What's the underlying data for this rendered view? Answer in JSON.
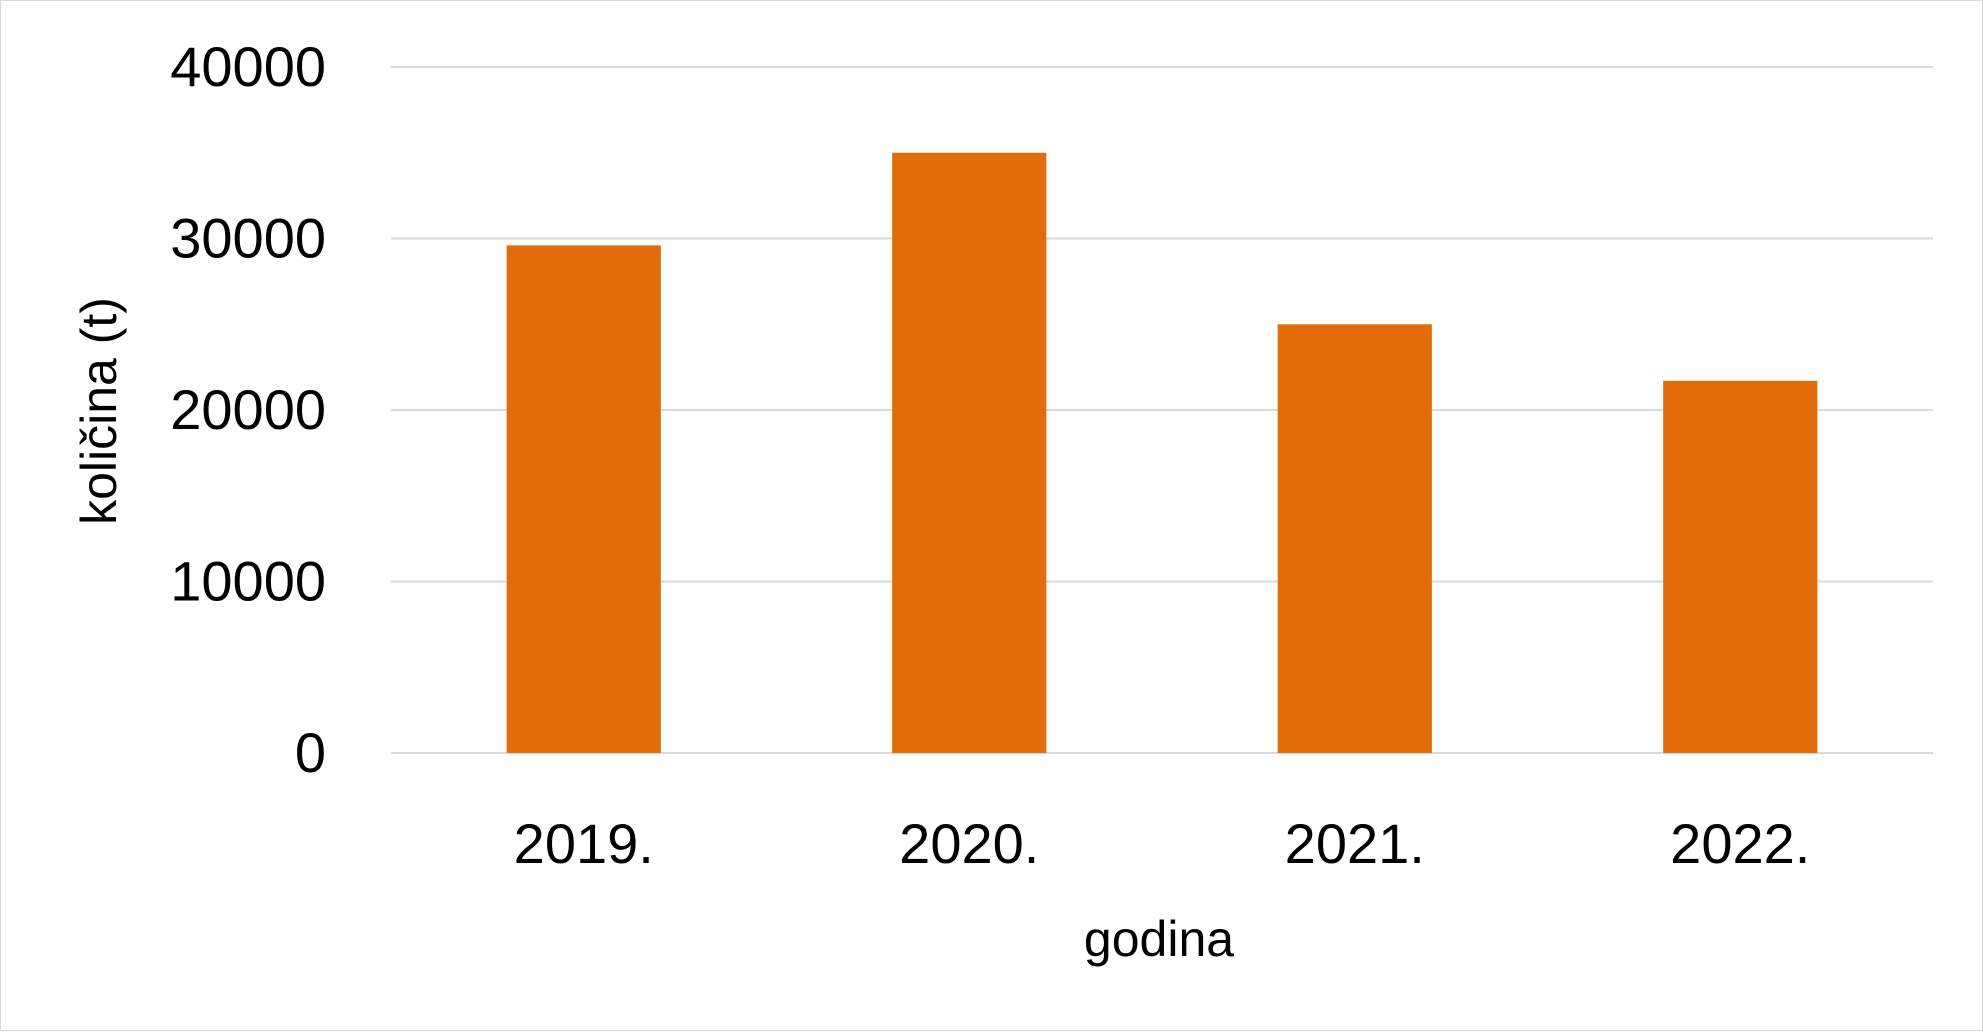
{
  "chart_data": {
    "type": "bar",
    "title": "",
    "xlabel": "godina",
    "ylabel": "količina (t)",
    "categories": [
      "2019.",
      "2020.",
      "2021.",
      "2022."
    ],
    "series": [
      {
        "values": [
          29600,
          35000,
          25000,
          21700
        ],
        "color": "#e36c0a"
      }
    ],
    "ylim": [
      0,
      40000
    ],
    "yticks": [
      "0",
      "10000",
      "20000",
      "30000",
      "40000"
    ],
    "grid": true,
    "gridColor": "#d9d9d9",
    "legend": "none"
  }
}
